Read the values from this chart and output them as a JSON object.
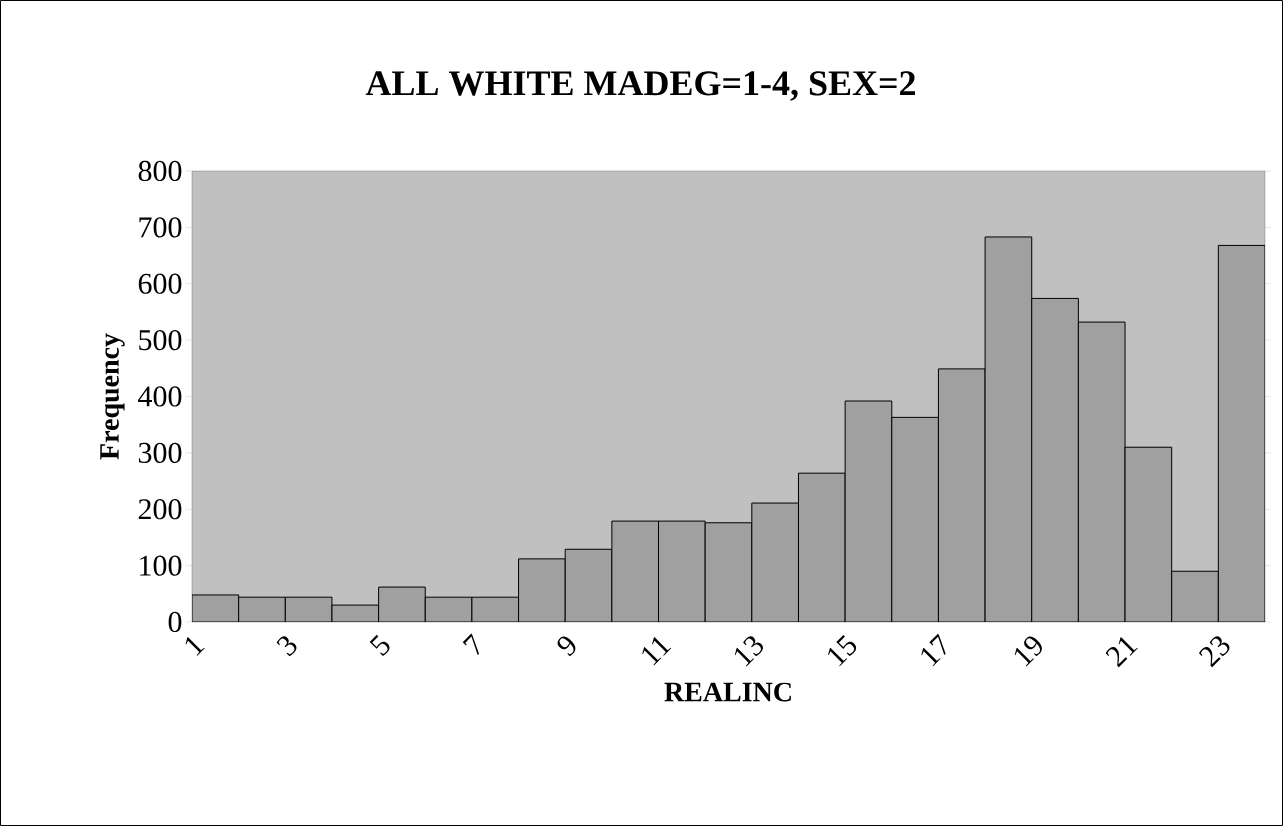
{
  "chart_data": {
    "type": "histogram",
    "title": "ALL WHITE MADEG=1-4, SEX=2",
    "xlabel": "REALINC",
    "ylabel": "Frequency",
    "bins": [
      1,
      2,
      3,
      4,
      5,
      6,
      7,
      8,
      9,
      10,
      11,
      12,
      13,
      14,
      15,
      16,
      17,
      18,
      19,
      20,
      21,
      22,
      23,
      24
    ],
    "values": [
      48,
      44,
      44,
      30,
      62,
      44,
      44,
      112,
      129,
      179,
      179,
      176,
      211,
      264,
      392,
      363,
      449,
      683,
      574,
      532,
      310,
      90,
      668
    ],
    "color": "#a0a0a0",
    "xlim": [
      1,
      24
    ],
    "xticks": [
      1,
      3,
      5,
      7,
      9,
      11,
      13,
      15,
      17,
      19,
      21,
      23
    ],
    "ylim": [
      0,
      800
    ],
    "yticks": [
      0,
      100,
      200,
      300,
      400,
      500,
      600,
      700,
      800
    ]
  }
}
